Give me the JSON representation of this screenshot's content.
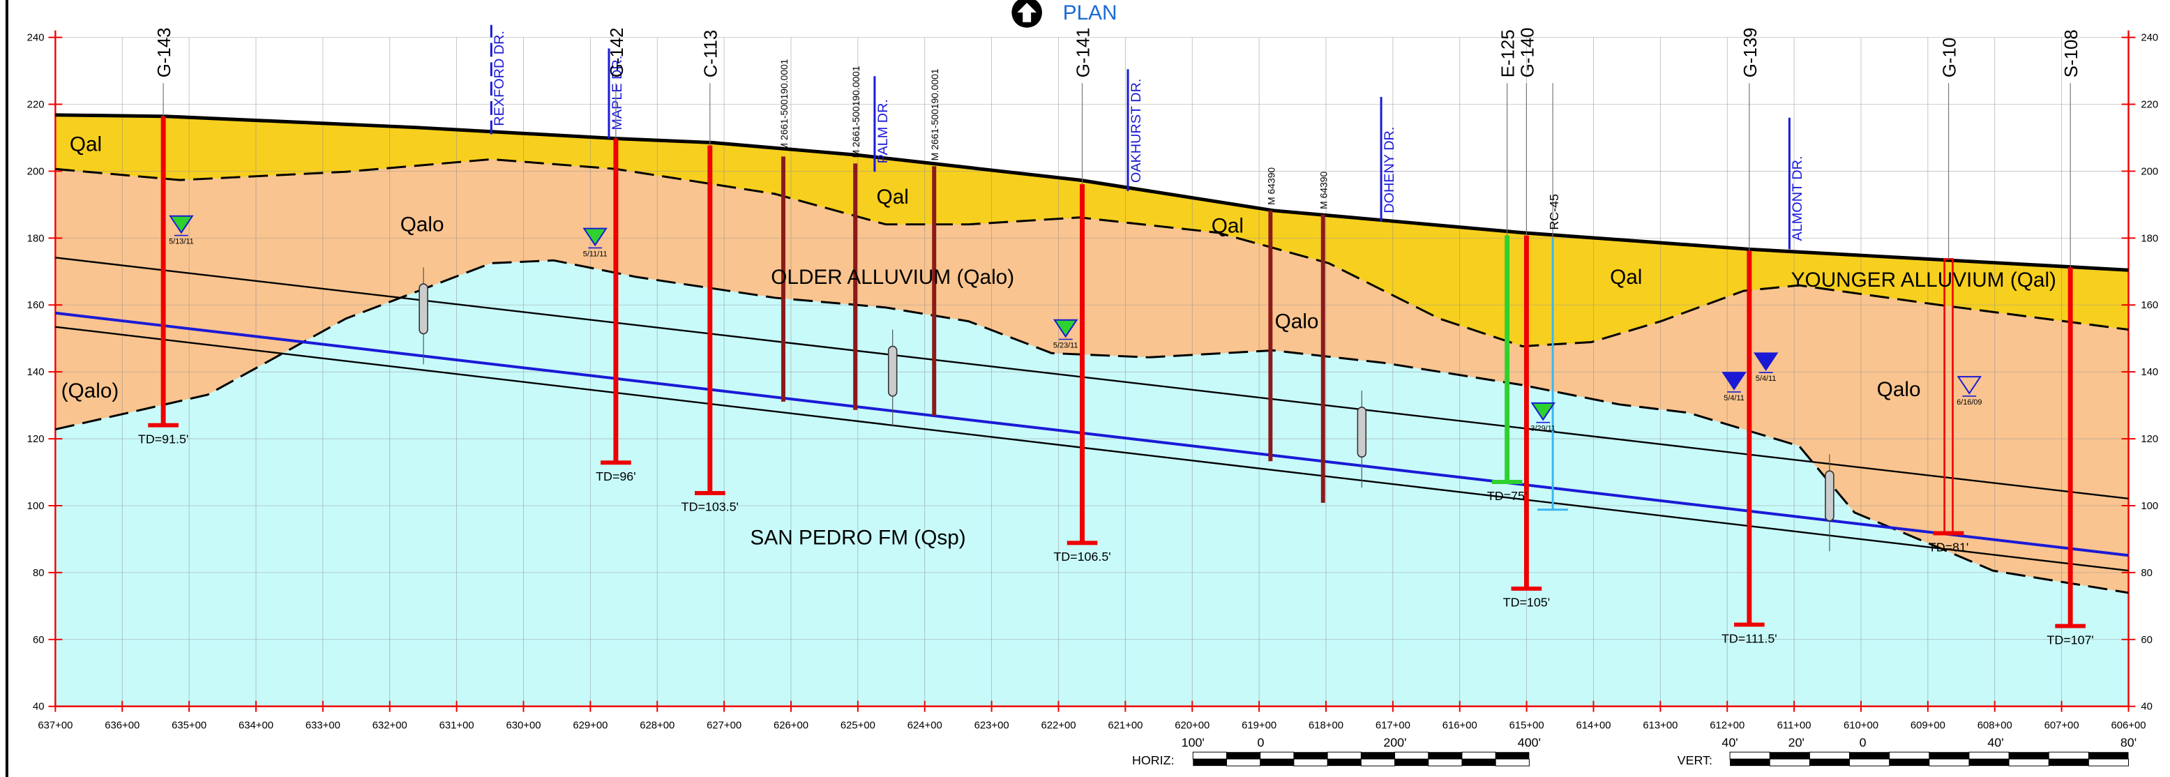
{
  "header": {
    "plan": "PLAN"
  },
  "axes": {
    "elevation_ticks": [
      240,
      220,
      200,
      180,
      160,
      140,
      120,
      100,
      80,
      60,
      40
    ],
    "stations": [
      "637+00",
      "636+00",
      "635+00",
      "634+00",
      "633+00",
      "632+00",
      "631+00",
      "630+00",
      "629+00",
      "628+00",
      "627+00",
      "626+00",
      "625+00",
      "624+00",
      "623+00",
      "622+00",
      "621+00",
      "620+00",
      "619+00",
      "618+00",
      "617+00",
      "616+00",
      "615+00",
      "614+00",
      "613+00",
      "612+00",
      "611+00",
      "610+00",
      "609+00",
      "608+00",
      "607+00",
      "606+00"
    ]
  },
  "borings": [
    {
      "name": "G-143",
      "td": "TD=91.5'"
    },
    {
      "name": "G-142",
      "td": "TD=96'"
    },
    {
      "name": "C-113",
      "td": "TD=103.5'"
    },
    {
      "name": "G-141",
      "td": "TD=106.5'"
    },
    {
      "name": "G-140",
      "td": "TD=105'"
    },
    {
      "name": "G-139",
      "td": "TD=111.5'"
    },
    {
      "name": "S-108",
      "td": "TD=107'"
    },
    {
      "name": "G-10",
      "td": "TD=81'"
    },
    {
      "name": "E-125",
      "td": "TD=75'"
    },
    {
      "name": "RC-45",
      "td": null
    }
  ],
  "logs": [
    "M 2661-500190.0001",
    "M 2661-500190.0001",
    "M 2661-500190.0001",
    "M 64390",
    "M 64390"
  ],
  "streets": [
    "REXFORD DR.",
    "MAPLE DR.",
    "PALM DR.",
    "OAKHURST DR.",
    "DOHENY DR.",
    "ALMONT DR."
  ],
  "units": [
    "Qal",
    "Qalo",
    "(Qalo)",
    "Qal",
    "OLDER ALLUVIUM (Qalo)",
    "Qal",
    "Qalo",
    "SAN PEDRO FM (Qsp)",
    "Qal",
    "YOUNGER ALLUVIUM (Qal)",
    "Qalo"
  ],
  "water_levels": [
    "5/13/11",
    "5/11/11",
    "5/23/11",
    "3/29/11",
    "5/4/11",
    "5/4/11",
    "6/16/09"
  ],
  "scales": {
    "horiz_label": "HORIZ:",
    "horiz_marks": [
      "100'",
      "0",
      "200'",
      "400'"
    ],
    "vert_label": "VERT:",
    "vert_marks": [
      "40'",
      "20'",
      "0",
      "40'",
      "80'"
    ]
  }
}
